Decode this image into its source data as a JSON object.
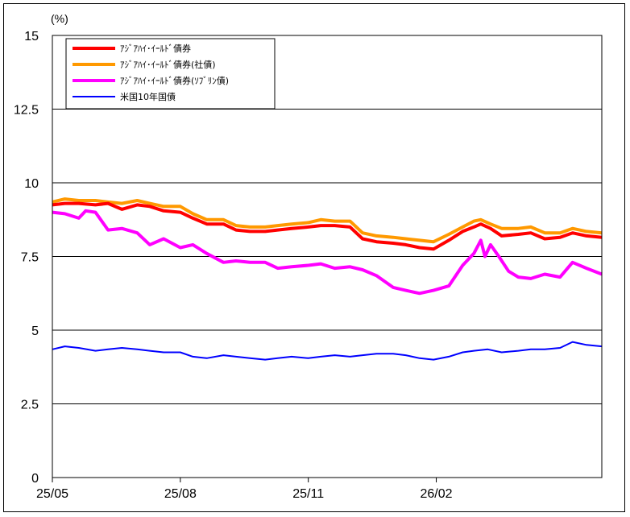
{
  "chart_data": {
    "type": "line",
    "ylabel": "(%)",
    "ylim": [
      0,
      15
    ],
    "yticks": [
      "0",
      "2.5",
      "5",
      "7.5",
      "10",
      "12.5",
      "15"
    ],
    "xticks": [
      "25/05",
      "25/08",
      "25/11",
      "26/02"
    ],
    "x_start": "2025-05-01",
    "x_end": "2026-05-31",
    "grid": "horizontal",
    "legend_position": "top-left",
    "series": [
      {
        "name": "ｱｼﾞｱﾊｲ･ｲｰﾙﾄﾞ債券",
        "color": "#ff0000",
        "points": [
          [
            "2025-05-01",
            9.25
          ],
          [
            "2025-05-10",
            9.3
          ],
          [
            "2025-05-20",
            9.3
          ],
          [
            "2025-06-01",
            9.25
          ],
          [
            "2025-06-10",
            9.3
          ],
          [
            "2025-06-20",
            9.1
          ],
          [
            "2025-07-01",
            9.25
          ],
          [
            "2025-07-10",
            9.2
          ],
          [
            "2025-07-20",
            9.05
          ],
          [
            "2025-08-01",
            9.0
          ],
          [
            "2025-08-10",
            8.8
          ],
          [
            "2025-08-20",
            8.6
          ],
          [
            "2025-09-01",
            8.6
          ],
          [
            "2025-09-10",
            8.4
          ],
          [
            "2025-09-20",
            8.35
          ],
          [
            "2025-10-01",
            8.35
          ],
          [
            "2025-10-10",
            8.4
          ],
          [
            "2025-10-20",
            8.45
          ],
          [
            "2025-11-01",
            8.5
          ],
          [
            "2025-11-10",
            8.55
          ],
          [
            "2025-11-20",
            8.55
          ],
          [
            "2025-12-01",
            8.5
          ],
          [
            "2025-12-10",
            8.1
          ],
          [
            "2025-12-20",
            8.0
          ],
          [
            "2026-01-01",
            7.95
          ],
          [
            "2026-01-10",
            7.9
          ],
          [
            "2026-01-20",
            7.8
          ],
          [
            "2026-01-30",
            7.75
          ],
          [
            "2026-02-10",
            8.05
          ],
          [
            "2026-02-20",
            8.35
          ],
          [
            "2026-02-28",
            8.5
          ],
          [
            "2026-03-05",
            8.6
          ],
          [
            "2026-03-12",
            8.45
          ],
          [
            "2026-03-20",
            8.2
          ],
          [
            "2026-04-01",
            8.25
          ],
          [
            "2026-04-10",
            8.3
          ],
          [
            "2026-04-20",
            8.1
          ],
          [
            "2026-05-01",
            8.15
          ],
          [
            "2026-05-10",
            8.3
          ],
          [
            "2026-05-20",
            8.2
          ],
          [
            "2026-05-31",
            8.15
          ]
        ]
      },
      {
        "name": "ｱｼﾞｱﾊｲ･ｲｰﾙﾄﾞ債券(社債)",
        "color": "#ff9900",
        "points": [
          [
            "2025-05-01",
            9.35
          ],
          [
            "2025-05-10",
            9.45
          ],
          [
            "2025-05-20",
            9.4
          ],
          [
            "2025-06-01",
            9.4
          ],
          [
            "2025-06-10",
            9.35
          ],
          [
            "2025-06-20",
            9.3
          ],
          [
            "2025-07-01",
            9.4
          ],
          [
            "2025-07-10",
            9.3
          ],
          [
            "2025-07-20",
            9.2
          ],
          [
            "2025-08-01",
            9.2
          ],
          [
            "2025-08-10",
            8.95
          ],
          [
            "2025-08-20",
            8.75
          ],
          [
            "2025-09-01",
            8.75
          ],
          [
            "2025-09-10",
            8.55
          ],
          [
            "2025-09-20",
            8.5
          ],
          [
            "2025-10-01",
            8.5
          ],
          [
            "2025-10-10",
            8.55
          ],
          [
            "2025-10-20",
            8.6
          ],
          [
            "2025-11-01",
            8.65
          ],
          [
            "2025-11-10",
            8.75
          ],
          [
            "2025-11-20",
            8.7
          ],
          [
            "2025-12-01",
            8.7
          ],
          [
            "2025-12-10",
            8.3
          ],
          [
            "2025-12-20",
            8.2
          ],
          [
            "2026-01-01",
            8.15
          ],
          [
            "2026-01-10",
            8.1
          ],
          [
            "2026-01-20",
            8.05
          ],
          [
            "2026-01-30",
            8.0
          ],
          [
            "2026-02-10",
            8.25
          ],
          [
            "2026-02-20",
            8.5
          ],
          [
            "2026-02-28",
            8.7
          ],
          [
            "2026-03-05",
            8.75
          ],
          [
            "2026-03-12",
            8.6
          ],
          [
            "2026-03-20",
            8.45
          ],
          [
            "2026-04-01",
            8.45
          ],
          [
            "2026-04-10",
            8.5
          ],
          [
            "2026-04-20",
            8.3
          ],
          [
            "2026-05-01",
            8.3
          ],
          [
            "2026-05-10",
            8.45
          ],
          [
            "2026-05-20",
            8.35
          ],
          [
            "2026-05-31",
            8.3
          ]
        ]
      },
      {
        "name": "ｱｼﾞｱﾊｲ･ｲｰﾙﾄﾞ債券(ｿﾌﾞﾘﾝ債)",
        "color": "#ff00ff",
        "points": [
          [
            "2025-05-01",
            9.0
          ],
          [
            "2025-05-10",
            8.95
          ],
          [
            "2025-05-20",
            8.8
          ],
          [
            "2025-05-25",
            9.05
          ],
          [
            "2025-06-01",
            9.0
          ],
          [
            "2025-06-10",
            8.4
          ],
          [
            "2025-06-20",
            8.45
          ],
          [
            "2025-07-01",
            8.3
          ],
          [
            "2025-07-10",
            7.9
          ],
          [
            "2025-07-20",
            8.1
          ],
          [
            "2025-08-01",
            7.8
          ],
          [
            "2025-08-10",
            7.9
          ],
          [
            "2025-08-20",
            7.6
          ],
          [
            "2025-09-01",
            7.3
          ],
          [
            "2025-09-10",
            7.35
          ],
          [
            "2025-09-20",
            7.3
          ],
          [
            "2025-10-01",
            7.3
          ],
          [
            "2025-10-10",
            7.1
          ],
          [
            "2025-10-20",
            7.15
          ],
          [
            "2025-11-01",
            7.2
          ],
          [
            "2025-11-10",
            7.25
          ],
          [
            "2025-11-20",
            7.1
          ],
          [
            "2025-12-01",
            7.15
          ],
          [
            "2025-12-10",
            7.05
          ],
          [
            "2025-12-20",
            6.85
          ],
          [
            "2026-01-01",
            6.45
          ],
          [
            "2026-01-10",
            6.35
          ],
          [
            "2026-01-20",
            6.25
          ],
          [
            "2026-01-30",
            6.35
          ],
          [
            "2026-02-10",
            6.5
          ],
          [
            "2026-02-20",
            7.2
          ],
          [
            "2026-02-28",
            7.6
          ],
          [
            "2026-03-05",
            8.05
          ],
          [
            "2026-03-08",
            7.5
          ],
          [
            "2026-03-12",
            7.9
          ],
          [
            "2026-03-18",
            7.5
          ],
          [
            "2026-03-25",
            7.0
          ],
          [
            "2026-04-01",
            6.8
          ],
          [
            "2026-04-10",
            6.75
          ],
          [
            "2026-04-20",
            6.9
          ],
          [
            "2026-05-01",
            6.8
          ],
          [
            "2026-05-10",
            7.3
          ],
          [
            "2026-05-20",
            7.1
          ],
          [
            "2026-05-31",
            6.9
          ]
        ]
      },
      {
        "name": "米国10年国債",
        "color": "#0000ff",
        "points": [
          [
            "2025-05-01",
            4.35
          ],
          [
            "2025-05-10",
            4.45
          ],
          [
            "2025-05-20",
            4.4
          ],
          [
            "2025-06-01",
            4.3
          ],
          [
            "2025-06-10",
            4.35
          ],
          [
            "2025-06-20",
            4.4
          ],
          [
            "2025-07-01",
            4.35
          ],
          [
            "2025-07-10",
            4.3
          ],
          [
            "2025-07-20",
            4.25
          ],
          [
            "2025-08-01",
            4.25
          ],
          [
            "2025-08-10",
            4.1
          ],
          [
            "2025-08-20",
            4.05
          ],
          [
            "2025-09-01",
            4.15
          ],
          [
            "2025-09-10",
            4.1
          ],
          [
            "2025-09-20",
            4.05
          ],
          [
            "2025-10-01",
            4.0
          ],
          [
            "2025-10-10",
            4.05
          ],
          [
            "2025-10-20",
            4.1
          ],
          [
            "2025-11-01",
            4.05
          ],
          [
            "2025-11-10",
            4.1
          ],
          [
            "2025-11-20",
            4.15
          ],
          [
            "2025-12-01",
            4.1
          ],
          [
            "2025-12-10",
            4.15
          ],
          [
            "2025-12-20",
            4.2
          ],
          [
            "2026-01-01",
            4.2
          ],
          [
            "2026-01-10",
            4.15
          ],
          [
            "2026-01-20",
            4.05
          ],
          [
            "2026-01-30",
            4.0
          ],
          [
            "2026-02-10",
            4.1
          ],
          [
            "2026-02-20",
            4.25
          ],
          [
            "2026-02-28",
            4.3
          ],
          [
            "2026-03-10",
            4.35
          ],
          [
            "2026-03-20",
            4.25
          ],
          [
            "2026-04-01",
            4.3
          ],
          [
            "2026-04-10",
            4.35
          ],
          [
            "2026-04-20",
            4.35
          ],
          [
            "2026-05-01",
            4.4
          ],
          [
            "2026-05-10",
            4.6
          ],
          [
            "2026-05-20",
            4.5
          ],
          [
            "2026-05-31",
            4.45
          ]
        ]
      }
    ]
  }
}
